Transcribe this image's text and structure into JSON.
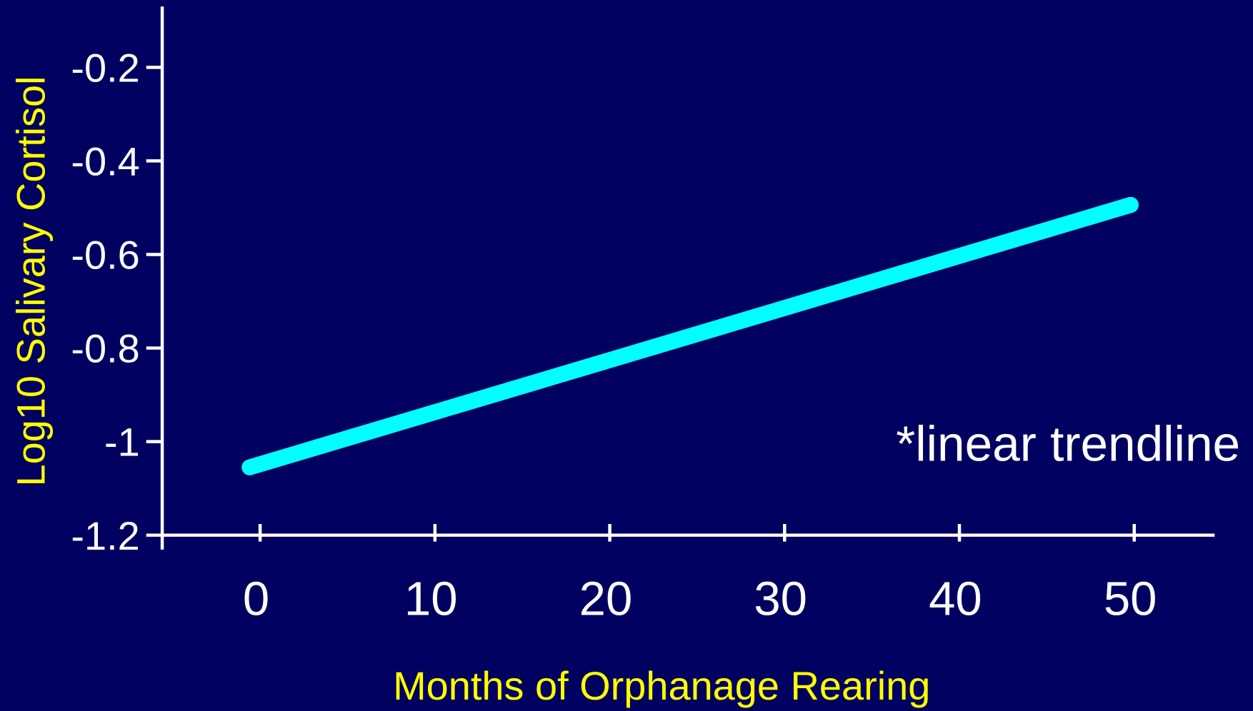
{
  "chart_data": {
    "type": "line",
    "x_label": "Months of Orphanage Rearing",
    "y_label": "Log10 Salivary Cortisol",
    "annotation": "*linear trendline",
    "x": [
      -0.6,
      49.8
    ],
    "values": [
      -1.055,
      -0.494
    ],
    "color": "#00ffff",
    "xlim": [
      -5.6,
      54.6
    ],
    "xticks": [
      0,
      10,
      20,
      30,
      40,
      50
    ],
    "ylim": [
      -1.2,
      -0.07
    ],
    "yticks": [
      -0.2,
      -0.4,
      -0.6,
      -0.8,
      -1,
      -1.2
    ]
  }
}
